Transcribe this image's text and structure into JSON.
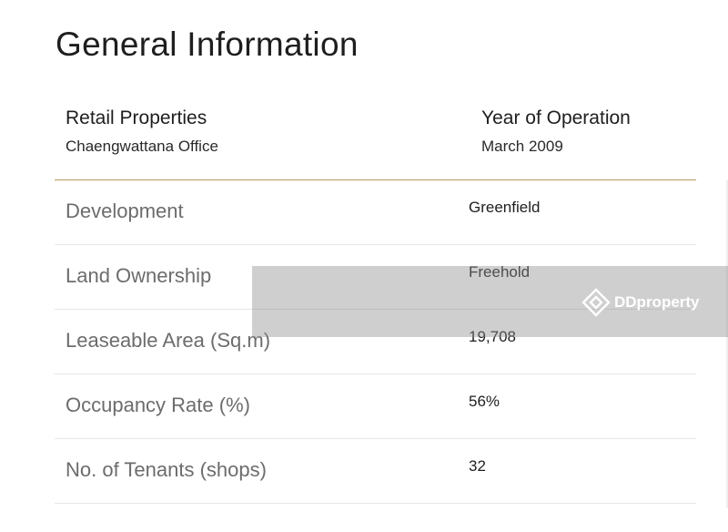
{
  "page": {
    "title": "General Information"
  },
  "summary": {
    "left": {
      "label": "Retail Properties",
      "value": "Chaengwattana Office"
    },
    "right": {
      "label": "Year of Operation",
      "value": "March 2009"
    }
  },
  "details": [
    {
      "label": "Development",
      "value": "Greenfield"
    },
    {
      "label": "Land Ownership",
      "value": "Freehold"
    },
    {
      "label": "Leaseable Area (Sq.m)",
      "value": "19,708"
    },
    {
      "label": "Occupancy Rate (%)",
      "value": "56%"
    },
    {
      "label": "No. of Tenants (shops)",
      "value": "32"
    }
  ],
  "watermark": {
    "brand_text": "DDproperty",
    "icon": "ddproperty-logo-icon"
  },
  "colors": {
    "accent_divider": "#b8975e",
    "row_divider": "#e6e6e6",
    "label_text": "#6c6c6c",
    "value_text": "#1e1e1e"
  }
}
